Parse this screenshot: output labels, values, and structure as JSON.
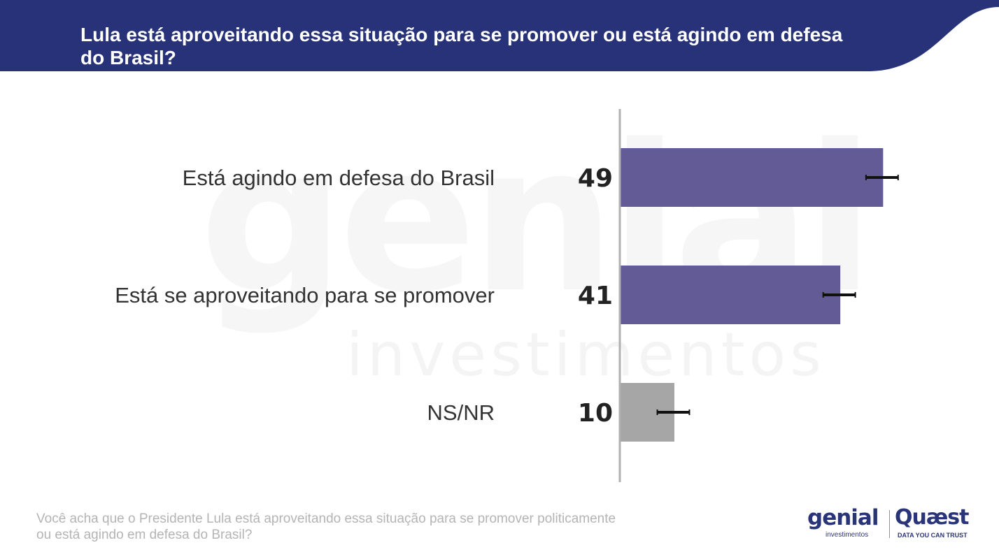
{
  "header": {
    "title": "Lula está aproveitando essa situação para se promover ou está agindo em defesa do Brasil?",
    "background_color": "#283278"
  },
  "watermark": {
    "big": "genial",
    "small": "investimentos"
  },
  "chart_data": {
    "type": "bar",
    "orientation": "horizontal",
    "categories": [
      "Está agindo em defesa do Brasil",
      "Está se aproveitando para se promover",
      "NS/NR"
    ],
    "values": [
      49,
      41,
      10
    ],
    "value_labels": [
      "49",
      "41",
      "10"
    ],
    "error_margin": 3,
    "colors": [
      "#625b95",
      "#625b95",
      "#a6a6a6"
    ],
    "xlim": [
      0,
      60
    ],
    "grid": false,
    "legend": "none"
  },
  "footnote": "Você acha que o Presidente Lula está aproveitando essa situação para se promover politicamente ou está agindo em defesa do Brasil?",
  "logos": {
    "genial": "genial",
    "genial_sub": "investimentos",
    "quaest": "Quæst",
    "quaest_sub": "DATA YOU CAN TRUST",
    "color": "#2a3478"
  }
}
